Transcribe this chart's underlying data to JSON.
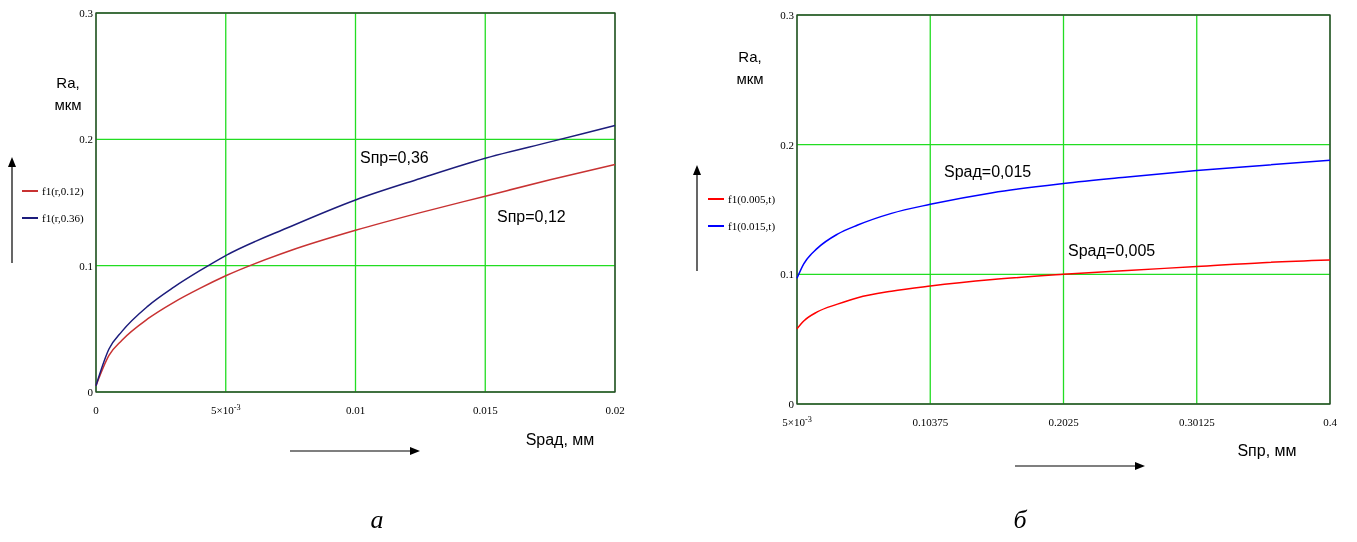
{
  "chart_data": [
    {
      "type": "line",
      "title": "а",
      "xlabel": "Sрад, мм",
      "ylabel": "Ra, мкм",
      "xlim": [
        0,
        0.02
      ],
      "ylim": [
        0,
        0.3
      ],
      "xticks": [
        0,
        {
          "value": 0.005,
          "label": "5×10$^{-3}$"
        },
        0.01,
        0.015,
        0.02
      ],
      "yticks": [
        0,
        0.1,
        0.2,
        0.3
      ],
      "grid": true,
      "legend": "left",
      "x": [
        0,
        0.0005,
        0.001,
        0.002,
        0.003,
        0.004,
        0.005,
        0.0075,
        0.01,
        0.0125,
        0.015,
        0.0175,
        0.02
      ],
      "series": [
        {
          "name": "f1(r,0.12)",
          "color": "#c83232",
          "values": [
            0.005,
            0.029,
            0.041,
            0.058,
            0.071,
            0.082,
            0.092,
            0.112,
            0.128,
            0.142,
            0.155,
            0.168,
            0.18
          ]
        },
        {
          "name": "f1(r,0.36)",
          "color": "#1c1c7c",
          "values": [
            0.005,
            0.034,
            0.048,
            0.068,
            0.083,
            0.096,
            0.108,
            0.131,
            0.152,
            0.169,
            0.185,
            0.198,
            0.211
          ]
        }
      ],
      "annotations": [
        "Sпр=0,36",
        "Sпр=0,12"
      ]
    },
    {
      "type": "line",
      "title": "б",
      "xlabel": "Sпр, мм",
      "ylabel": "Ra, мкм",
      "xlim": [
        0.005,
        0.4
      ],
      "ylim": [
        0,
        0.3
      ],
      "xticks": [
        {
          "value": 0.005,
          "label": "5×10$^{-3}$"
        },
        0.10375,
        0.2025,
        0.30125,
        0.4
      ],
      "yticks": [
        0,
        0.1,
        0.2,
        0.3
      ],
      "grid": true,
      "legend": "left",
      "x": [
        0.005,
        0.01,
        0.02,
        0.035,
        0.05,
        0.075,
        0.10375,
        0.15,
        0.2025,
        0.25,
        0.30125,
        0.35,
        0.4
      ],
      "series": [
        {
          "name": "f1(0.005,t)",
          "color": "#ff0000",
          "values": [
            0.058,
            0.064,
            0.071,
            0.077,
            0.082,
            0.087,
            0.091,
            0.096,
            0.1,
            0.103,
            0.106,
            0.109,
            0.111
          ]
        },
        {
          "name": "f1(0.015,t)",
          "color": "#0000ff",
          "values": [
            0.097,
            0.108,
            0.12,
            0.131,
            0.138,
            0.147,
            0.154,
            0.163,
            0.17,
            0.175,
            0.18,
            0.184,
            0.188
          ]
        }
      ],
      "annotations": [
        "Sрад=0,015",
        "Sрад=0,005"
      ]
    }
  ]
}
